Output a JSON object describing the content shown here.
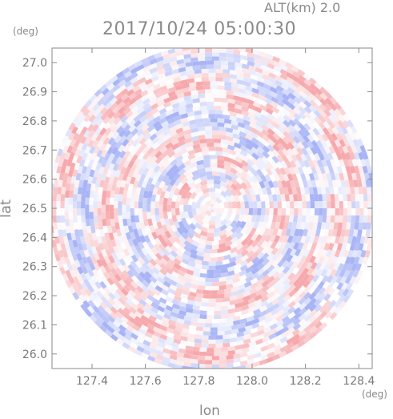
{
  "header": {
    "alt_label": "ALT(km) 2.0",
    "timestamp": "2017/10/24 05:00:30",
    "lat_unit": "(deg)",
    "lon_unit": "(deg)"
  },
  "chart_data": {
    "type": "heatmap",
    "title": "2017/10/24 05:00:30",
    "subtitle": "ALT(km) 2.0",
    "xlabel": "lon",
    "ylabel": "lat",
    "x_unit": "(deg)",
    "y_unit": "(deg)",
    "xlim": [
      127.25,
      128.45
    ],
    "ylim": [
      25.95,
      27.05
    ],
    "xticks": [
      127.4,
      127.6,
      127.8,
      128.0,
      128.2,
      128.4
    ],
    "xtick_labels": [
      "127.4",
      "127.6",
      "127.8",
      "128.0",
      "128.2",
      "128.4"
    ],
    "yticks": [
      27.0,
      26.9,
      26.8,
      26.7,
      26.6,
      26.5,
      26.4,
      26.3,
      26.2,
      26.1,
      26.0
    ],
    "ytick_labels": [
      "27.0",
      "26.9",
      "26.8",
      "26.7",
      "26.6",
      "26.5",
      "26.4",
      "26.3",
      "26.2",
      "26.1",
      "26.0"
    ],
    "domain": "circular radar coverage",
    "center": {
      "lon": 127.85,
      "lat": 26.5
    },
    "colormap": {
      "negative": "#a8b4f5",
      "neutral": "#ffffff",
      "positive": "#f6a8ac"
    },
    "grid": false,
    "legend": "none"
  }
}
